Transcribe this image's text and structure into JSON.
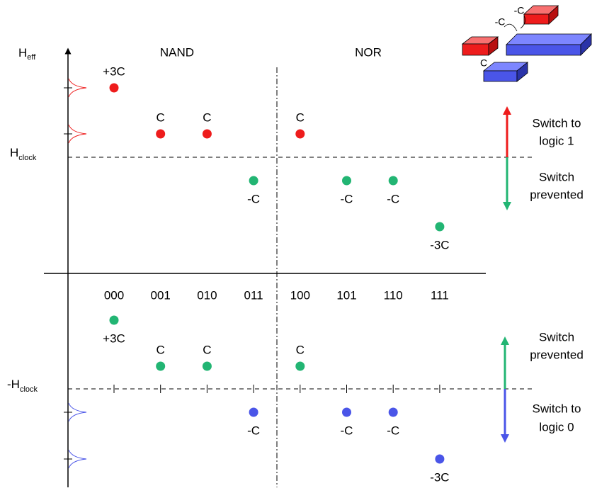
{
  "axis": {
    "y_label": "H",
    "y_label_sub": "eff",
    "categories": [
      "000",
      "001",
      "010",
      "011",
      "100",
      "101",
      "110",
      "111"
    ]
  },
  "headers": [
    "NAND",
    "NOR"
  ],
  "levels": {
    "upper": {
      "label": "H",
      "sub": "clock"
    },
    "lower": {
      "label": "-H",
      "sub": "clock"
    }
  },
  "upper_points": [
    {
      "label": "+3C",
      "color": "#ee1c1c"
    },
    {
      "label": "C",
      "color": "#ee1c1c"
    },
    {
      "label": "C",
      "color": "#ee1c1c"
    },
    {
      "label": "-C",
      "color": "#22b573"
    },
    {
      "label": "C",
      "color": "#ee1c1c"
    },
    {
      "label": "-C",
      "color": "#22b573"
    },
    {
      "label": "-C",
      "color": "#22b573"
    },
    {
      "label": "-3C",
      "color": "#22b573"
    }
  ],
  "lower_points": [
    {
      "label": "+3C",
      "color": "#22b573"
    },
    {
      "label": "C",
      "color": "#22b573"
    },
    {
      "label": "C",
      "color": "#22b573"
    },
    {
      "label": "-C",
      "color": "#4a55e8"
    },
    {
      "label": "C",
      "color": "#22b573"
    },
    {
      "label": "-C",
      "color": "#4a55e8"
    },
    {
      "label": "-C",
      "color": "#4a55e8"
    },
    {
      "label": "-3C",
      "color": "#4a55e8"
    }
  ],
  "annotations": {
    "upper_up": [
      "Switch to",
      "logic 1"
    ],
    "upper_down": [
      "Switch",
      "prevented"
    ],
    "lower_up": [
      "Switch",
      "prevented"
    ],
    "lower_down": [
      "Switch to",
      "logic 0"
    ]
  },
  "inset": {
    "labels": [
      "-C",
      "-C",
      "C"
    ]
  }
}
